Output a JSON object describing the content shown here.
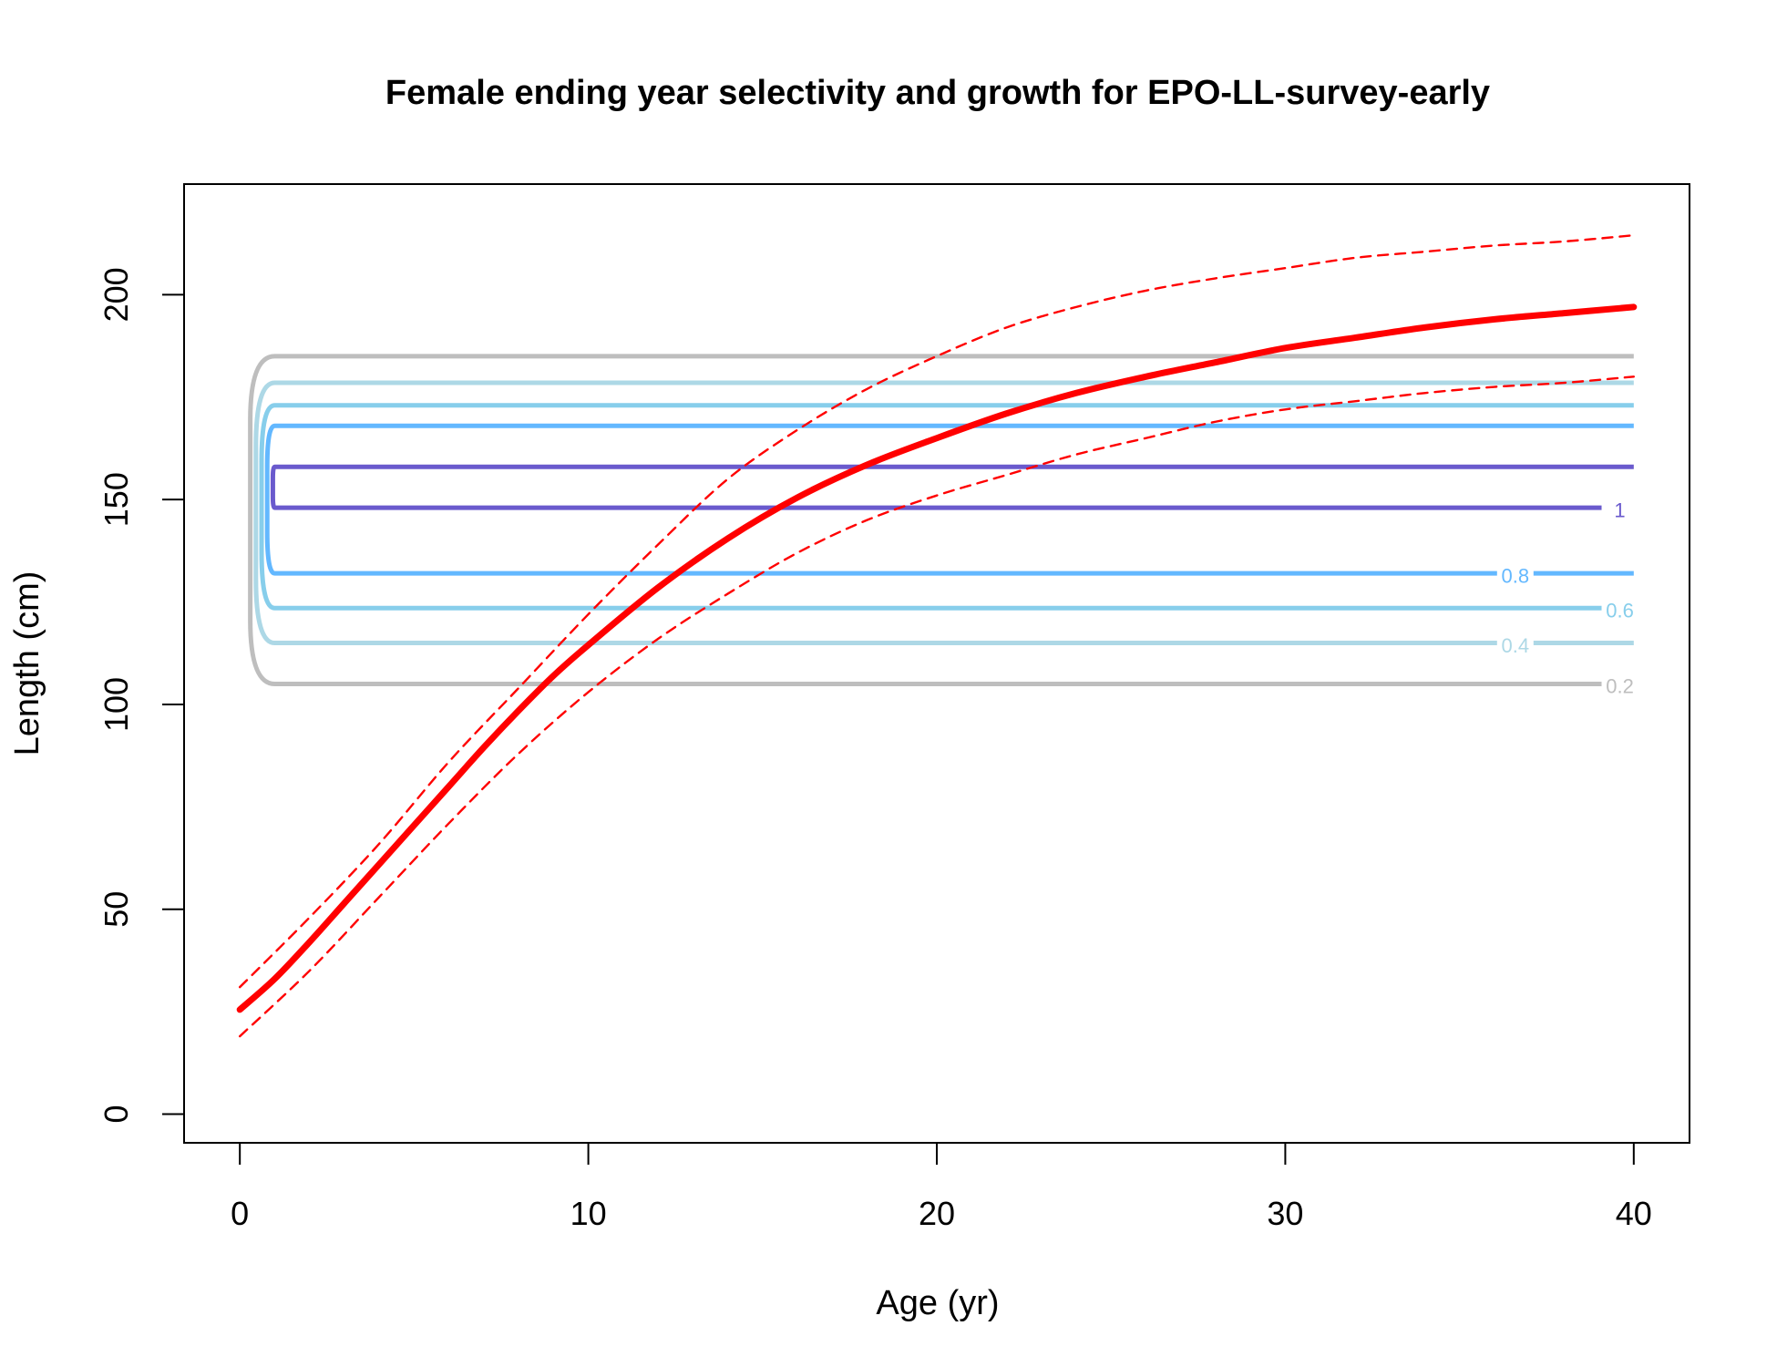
{
  "chart_data": {
    "type": "line",
    "title": "Female ending year selectivity and growth for EPO-LL-survey-early",
    "xlabel": "Age (yr)",
    "ylabel": "Length (cm)",
    "xlim": [
      -1.6,
      41.6
    ],
    "ylim": [
      -7,
      227
    ],
    "x_ticks": [
      0,
      10,
      20,
      30,
      40
    ],
    "y_ticks": [
      0,
      50,
      100,
      150,
      200
    ],
    "grid": false,
    "legend": "none",
    "series": [
      {
        "role": "mean-growth",
        "color": "#ff0000",
        "style": "solid",
        "x": [
          0,
          1,
          2,
          3,
          4,
          5,
          6,
          7,
          8,
          9,
          10,
          12,
          14,
          16,
          18,
          20,
          22,
          24,
          26,
          28,
          30,
          32,
          34,
          36,
          38,
          40
        ],
        "y": [
          25.5,
          33,
          42,
          51.5,
          61,
          70.5,
          80,
          89.5,
          98.5,
          107,
          114.5,
          128.5,
          140.5,
          150.5,
          158.5,
          165,
          171,
          176,
          180,
          183.5,
          187,
          189.5,
          192,
          194,
          195.5,
          197
        ]
      },
      {
        "role": "upper-interval",
        "color": "#ff0000",
        "style": "dashed",
        "x": [
          0,
          2,
          4,
          6,
          8,
          10,
          12,
          14,
          16,
          18,
          20,
          22,
          24,
          26,
          28,
          30,
          32,
          34,
          36,
          38,
          40
        ],
        "y": [
          31,
          48,
          66,
          86,
          104,
          122,
          139,
          155,
          167,
          177,
          185,
          192,
          197,
          201,
          204,
          206.5,
          209,
          210.5,
          212,
          213,
          214.5
        ]
      },
      {
        "role": "lower-interval",
        "color": "#ff0000",
        "style": "dashed",
        "x": [
          0,
          2,
          4,
          6,
          8,
          10,
          12,
          14,
          16,
          18,
          20,
          22,
          24,
          26,
          28,
          30,
          32,
          34,
          36,
          38,
          40
        ],
        "y": [
          19,
          35,
          53,
          71,
          88,
          103,
          116,
          127,
          137,
          145,
          151,
          156,
          161,
          165,
          169,
          172,
          174,
          176,
          177.5,
          178.5,
          180
        ]
      }
    ],
    "contours": [
      {
        "level": "0.2",
        "color": "#bebebe",
        "top": 185,
        "bottom": 105,
        "label_x": 39.6,
        "label_y": 104.5
      },
      {
        "level": "0.4",
        "color": "#add8e6",
        "top": 178.5,
        "bottom": 115,
        "label_x": 36.6,
        "label_y": 114.5
      },
      {
        "level": "0.6",
        "color": "#87ceeb",
        "top": 173,
        "bottom": 123.5,
        "label_x": 39.6,
        "label_y": 123
      },
      {
        "level": "0.8",
        "color": "#63b8ff",
        "top": 168,
        "bottom": 132,
        "label_x": 36.6,
        "label_y": 131.5
      },
      {
        "level": "1",
        "color": "#6a5acd",
        "top": 158,
        "bottom": 148,
        "label_x": 39.6,
        "label_y": 147.5
      }
    ]
  }
}
